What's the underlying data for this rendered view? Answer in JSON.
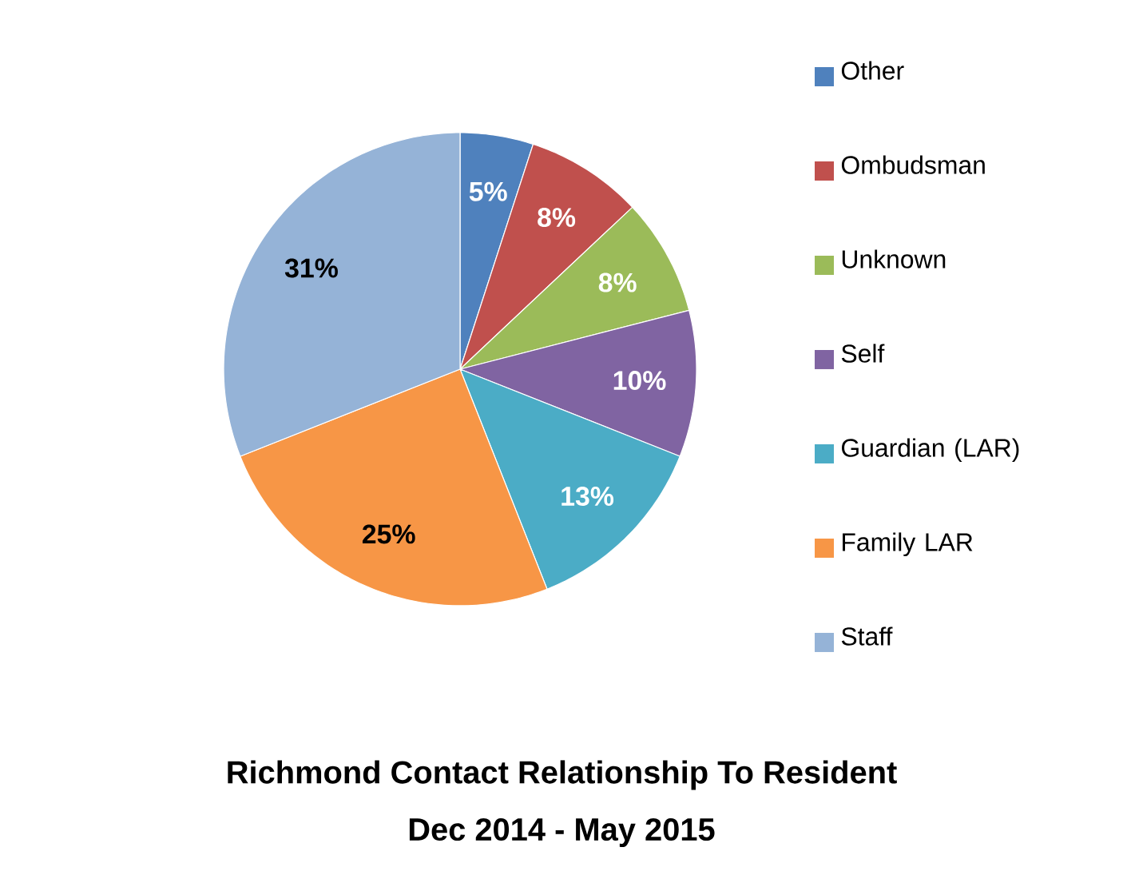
{
  "chart_data": {
    "type": "pie",
    "title": "Richmond Contact Relationship To Resident",
    "subtitle": "Dec 2014 - May 2015",
    "categories": [
      "Other",
      "Ombudsman",
      "Unknown",
      "Self",
      "Guardian (LAR)",
      "Family LAR",
      "Staff"
    ],
    "values": [
      5,
      8,
      8,
      10,
      13,
      25,
      31
    ],
    "colors": [
      "#4f81bd",
      "#c0504d",
      "#9bbb59",
      "#8064a2",
      "#4bacc6",
      "#f79646",
      "#95b3d7"
    ],
    "value_labels": [
      "5%",
      "8%",
      "8%",
      "10%",
      "13%",
      "25%",
      "31%"
    ],
    "legend": "right"
  }
}
